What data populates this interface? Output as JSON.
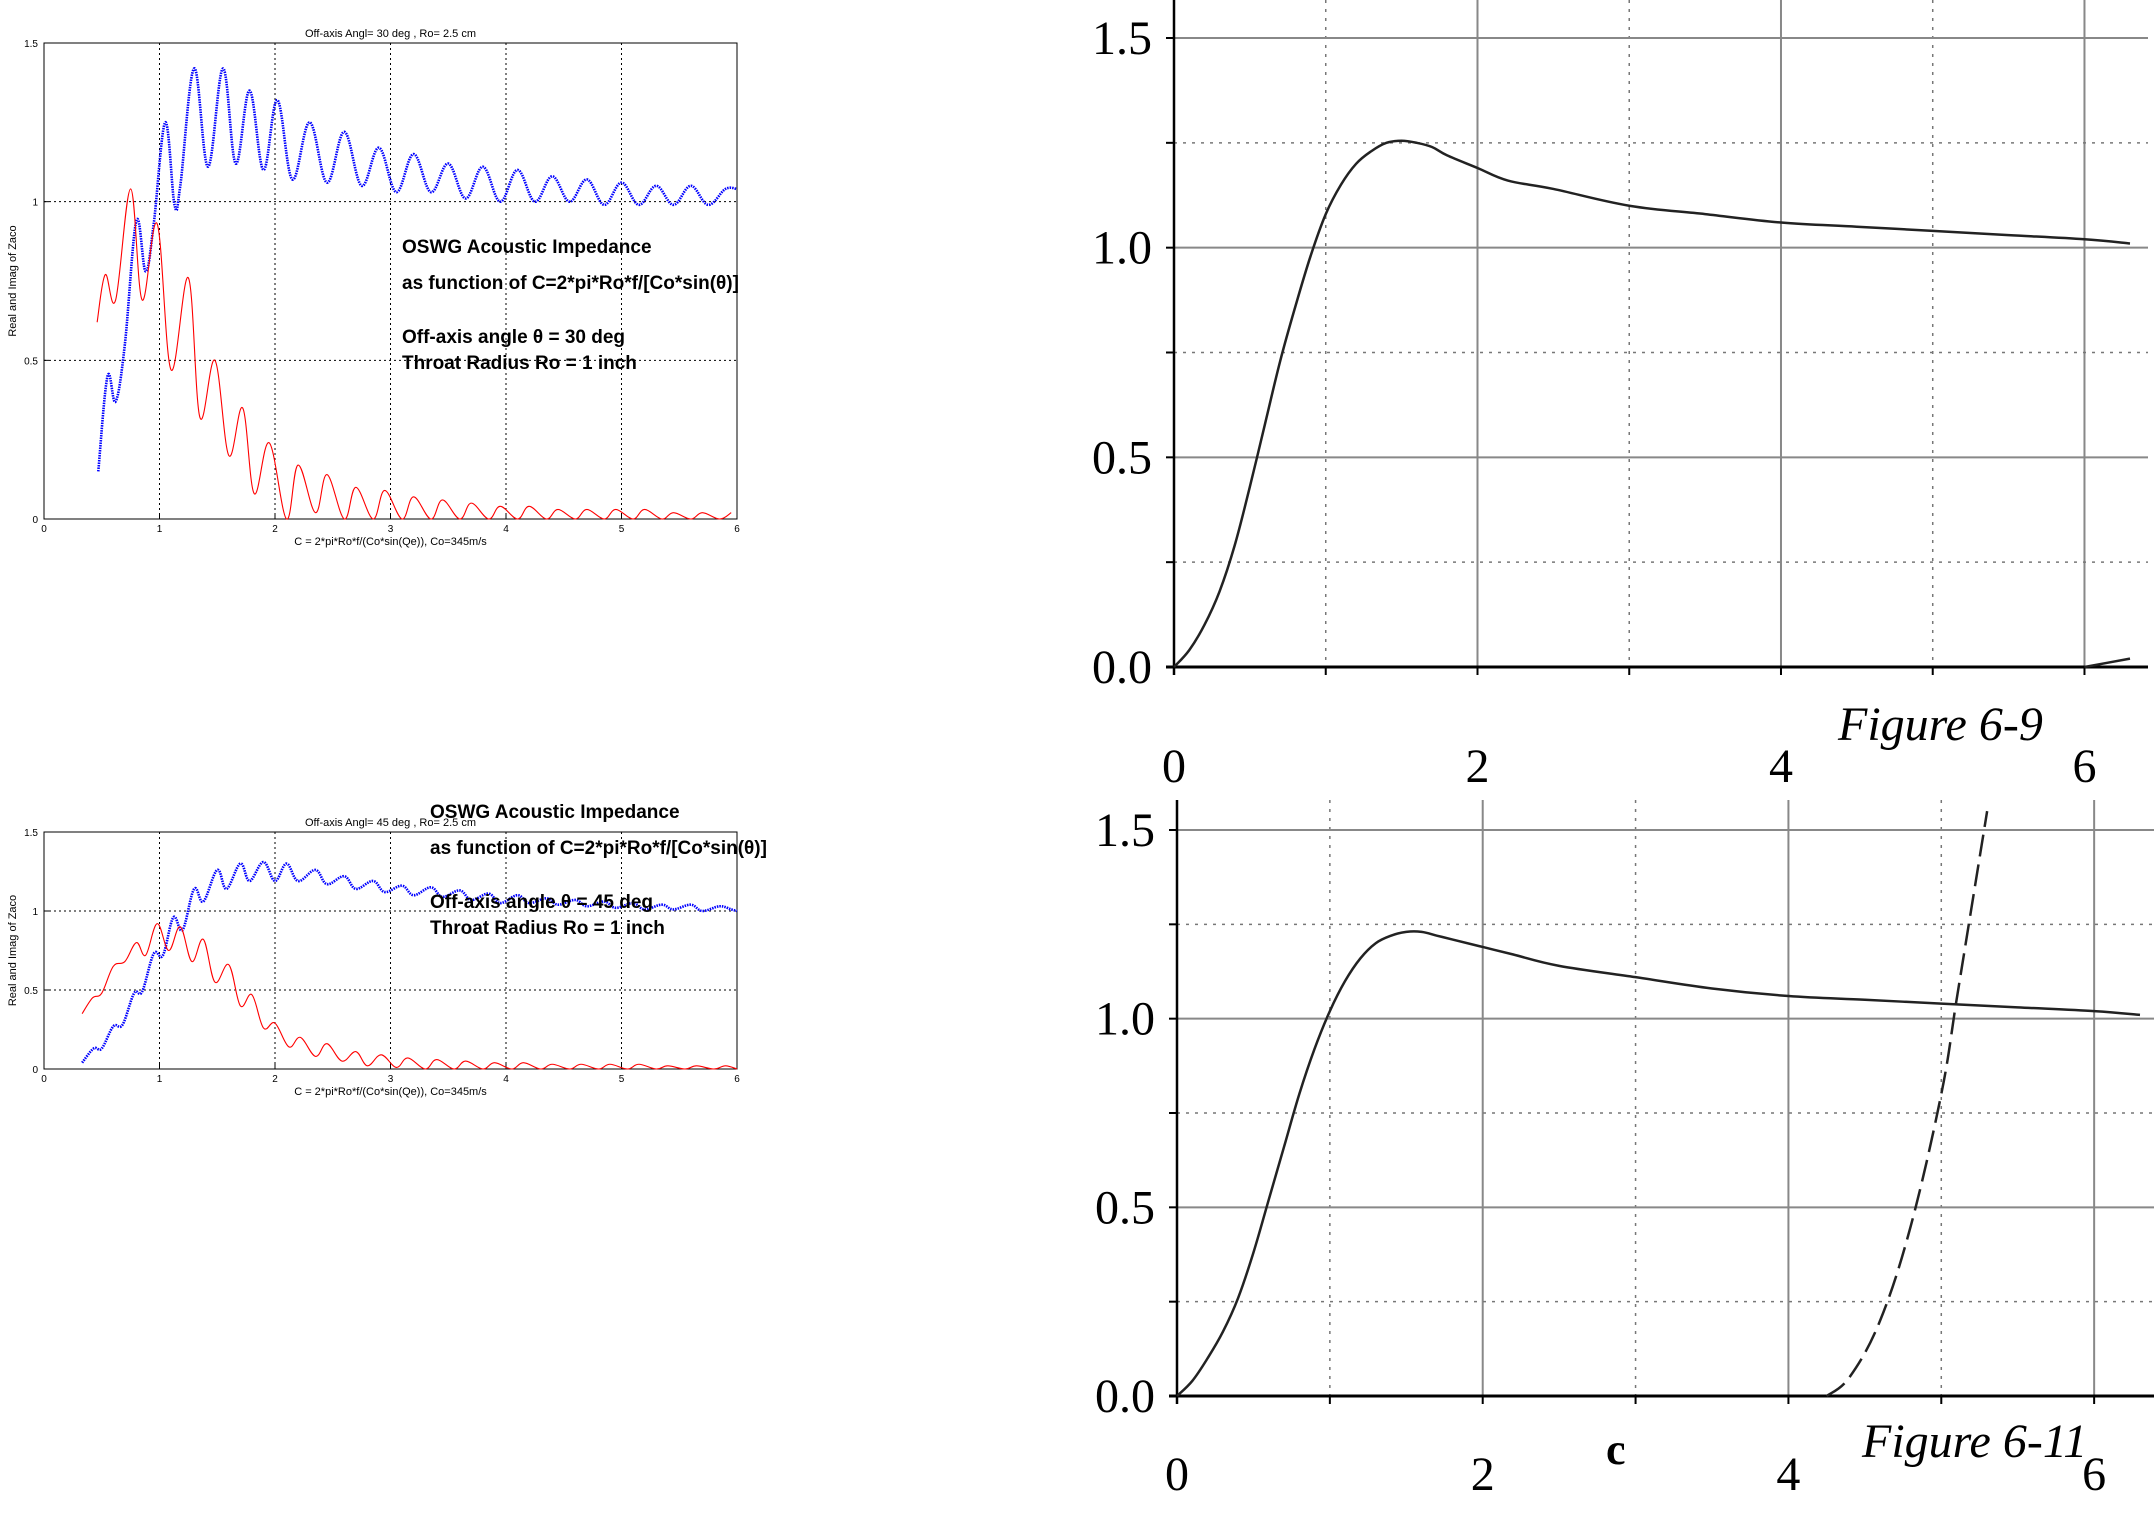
{
  "chart_data": [
    {
      "type": "line",
      "title": "Off-axis Angl= 30 deg  , Ro= 2.5 cm",
      "xlabel": "C = 2*pi*Ro*f/(Co*sin(Qe)), Co=345m/s",
      "ylabel": "Real and Imag of Zaco",
      "xlim": [
        0,
        6
      ],
      "ylim": [
        0,
        1.5
      ],
      "xticks": [
        "0",
        "1",
        "2",
        "3",
        "4",
        "5",
        "6"
      ],
      "yticks": [
        "0",
        "0.5",
        "1",
        "1.5"
      ],
      "grid": "dotted",
      "annotation": {
        "line1": "OSWG Acoustic Impedance",
        "line2": "as function of  C=2*pi*Ro*f/[Co*sin(θ)]",
        "line3": "Off-axis angle  θ    = 30 deg",
        "line4": "Throat Radius Ro = 1 inch"
      },
      "series": [
        {
          "color": "#0000ff",
          "style": "dotted-markers",
          "x": [
            0.47,
            0.55,
            0.62,
            0.7,
            0.8,
            0.88,
            0.95,
            1.05,
            1.13,
            1.18,
            1.3,
            1.42,
            1.55,
            1.66,
            1.78,
            1.9,
            2.02,
            2.15,
            2.3,
            2.45,
            2.6,
            2.75,
            2.9,
            3.05,
            3.2,
            3.35,
            3.5,
            3.65,
            3.8,
            3.95,
            4.1,
            4.25,
            4.4,
            4.55,
            4.7,
            4.85,
            5.0,
            5.15,
            5.3,
            5.45,
            5.6,
            5.75,
            5.9,
            6.0
          ],
          "y": [
            0.15,
            0.45,
            0.37,
            0.55,
            0.94,
            0.78,
            0.93,
            1.25,
            0.99,
            1.05,
            1.42,
            1.11,
            1.42,
            1.12,
            1.35,
            1.1,
            1.32,
            1.07,
            1.25,
            1.06,
            1.22,
            1.05,
            1.17,
            1.03,
            1.15,
            1.03,
            1.12,
            1.01,
            1.11,
            1.0,
            1.1,
            1.0,
            1.08,
            1.0,
            1.07,
            0.99,
            1.06,
            0.99,
            1.05,
            0.99,
            1.05,
            0.99,
            1.04,
            1.04
          ]
        },
        {
          "color": "#ff0000",
          "style": "solid",
          "x": [
            0.46,
            0.53,
            0.62,
            0.75,
            0.85,
            0.98,
            1.1,
            1.25,
            1.35,
            1.48,
            1.6,
            1.72,
            1.82,
            1.95,
            2.1,
            2.2,
            2.35,
            2.45,
            2.6,
            2.7,
            2.85,
            2.95,
            3.1,
            3.2,
            3.35,
            3.45,
            3.6,
            3.7,
            3.85,
            3.95,
            4.1,
            4.2,
            4.35,
            4.45,
            4.6,
            4.7,
            4.85,
            4.95,
            5.1,
            5.2,
            5.35,
            5.45,
            5.6,
            5.7,
            5.85,
            5.95
          ],
          "y": [
            0.62,
            0.77,
            0.69,
            1.04,
            0.69,
            0.93,
            0.47,
            0.76,
            0.32,
            0.5,
            0.2,
            0.35,
            0.08,
            0.24,
            0.0,
            0.17,
            0.02,
            0.14,
            0.0,
            0.1,
            0.0,
            0.09,
            0.0,
            0.07,
            0.0,
            0.06,
            0.0,
            0.05,
            0.0,
            0.04,
            0.0,
            0.04,
            0.0,
            0.03,
            0.0,
            0.03,
            0.0,
            0.03,
            0.0,
            0.03,
            0.0,
            0.02,
            0.0,
            0.02,
            0.0,
            0.02
          ]
        }
      ]
    },
    {
      "type": "line",
      "title": "Off-axis Angl= 45 deg  , Ro= 2.5 cm",
      "xlabel": "C = 2*pi*Ro*f/(Co*sin(Qe)), Co=345m/s",
      "ylabel": "Real and Imag of Zaco",
      "xlim": [
        0,
        6
      ],
      "ylim": [
        0,
        1.5
      ],
      "xticks": [
        "0",
        "1",
        "2",
        "3",
        "4",
        "5",
        "6"
      ],
      "yticks": [
        "0",
        "0.5",
        "1",
        "1.5"
      ],
      "grid": "dotted",
      "annotation": {
        "line1": "OSWG Acoustic Impedance",
        "line2": "as function of  C=2*pi*Ro*f/[Co*sin(θ)]",
        "line3": "Off-axis angle  θ    = 45 deg",
        "line4": "Throat Radius Ro = 1 inch"
      },
      "series": [
        {
          "color": "#0000ff",
          "style": "dotted-markers",
          "x": [
            0.33,
            0.43,
            0.5,
            0.6,
            0.68,
            0.78,
            0.85,
            0.95,
            1.03,
            1.12,
            1.2,
            1.3,
            1.38,
            1.5,
            1.58,
            1.7,
            1.78,
            1.9,
            2.0,
            2.1,
            2.2,
            2.35,
            2.45,
            2.6,
            2.7,
            2.85,
            2.95,
            3.1,
            3.2,
            3.35,
            3.45,
            3.6,
            3.7,
            3.85,
            3.95,
            4.1,
            4.2,
            4.35,
            4.45,
            4.6,
            4.7,
            4.85,
            4.95,
            5.1,
            5.2,
            5.35,
            5.45,
            5.6,
            5.7,
            5.85,
            5.95,
            6.0
          ],
          "y": [
            0.04,
            0.13,
            0.13,
            0.27,
            0.28,
            0.48,
            0.49,
            0.73,
            0.72,
            0.96,
            0.88,
            1.14,
            1.06,
            1.26,
            1.14,
            1.3,
            1.19,
            1.31,
            1.19,
            1.3,
            1.19,
            1.26,
            1.17,
            1.22,
            1.14,
            1.19,
            1.12,
            1.16,
            1.1,
            1.15,
            1.09,
            1.13,
            1.07,
            1.11,
            1.05,
            1.1,
            1.05,
            1.08,
            1.04,
            1.07,
            1.03,
            1.06,
            1.02,
            1.05,
            1.01,
            1.04,
            1.01,
            1.04,
            1.0,
            1.03,
            1.01,
            1.0
          ]
        },
        {
          "color": "#ff0000",
          "style": "solid",
          "x": [
            0.33,
            0.42,
            0.5,
            0.6,
            0.7,
            0.8,
            0.88,
            0.98,
            1.08,
            1.18,
            1.28,
            1.38,
            1.48,
            1.6,
            1.7,
            1.8,
            1.9,
            2.0,
            2.12,
            2.22,
            2.35,
            2.45,
            2.58,
            2.7,
            2.8,
            2.92,
            3.05,
            3.15,
            3.3,
            3.4,
            3.55,
            3.65,
            3.8,
            3.9,
            4.05,
            4.15,
            4.3,
            4.4,
            4.55,
            4.65,
            4.8,
            4.9,
            5.05,
            5.15,
            5.3,
            5.4,
            5.55,
            5.65,
            5.8,
            5.9,
            6.0
          ],
          "y": [
            0.35,
            0.45,
            0.48,
            0.65,
            0.68,
            0.8,
            0.72,
            0.92,
            0.75,
            0.9,
            0.68,
            0.82,
            0.55,
            0.66,
            0.4,
            0.47,
            0.26,
            0.29,
            0.14,
            0.2,
            0.08,
            0.16,
            0.05,
            0.11,
            0.02,
            0.09,
            0.01,
            0.07,
            0.0,
            0.06,
            0.0,
            0.05,
            0.0,
            0.04,
            0.0,
            0.04,
            0.0,
            0.03,
            0.0,
            0.03,
            0.0,
            0.03,
            0.0,
            0.03,
            0.0,
            0.02,
            0.0,
            0.02,
            0.0,
            0.02,
            0.0
          ]
        }
      ]
    },
    {
      "type": "line",
      "title": "",
      "caption": "Figure 6-9",
      "xlim": [
        0,
        6.3
      ],
      "ylim": [
        0,
        1.5
      ],
      "xticks": [
        "0",
        "2",
        "4",
        "6"
      ],
      "yticks": [
        "0.0",
        "0.5",
        "1.0",
        "1.5"
      ],
      "grid": "solid-major, dotted-minor",
      "series": [
        {
          "color": "#222222",
          "style": "solid",
          "x": [
            0,
            0.1,
            0.2,
            0.3,
            0.4,
            0.5,
            0.6,
            0.7,
            0.8,
            0.9,
            1.0,
            1.1,
            1.2,
            1.3,
            1.4,
            1.5,
            1.6,
            1.7,
            1.8,
            2.0,
            2.2,
            2.5,
            3.0,
            3.5,
            4.0,
            4.5,
            5.0,
            5.5,
            6.0,
            6.3
          ],
          "y": [
            0,
            0.04,
            0.1,
            0.18,
            0.29,
            0.43,
            0.58,
            0.73,
            0.86,
            0.98,
            1.08,
            1.15,
            1.2,
            1.23,
            1.25,
            1.255,
            1.25,
            1.24,
            1.22,
            1.19,
            1.16,
            1.14,
            1.1,
            1.08,
            1.06,
            1.05,
            1.04,
            1.03,
            1.02,
            1.01
          ]
        },
        {
          "color": "#222222",
          "style": "solid",
          "x": [
            6.0,
            6.3
          ],
          "y": [
            0.0,
            0.02
          ]
        }
      ]
    },
    {
      "type": "line",
      "title": "",
      "caption": "Figure 6-11",
      "xlabel": "c",
      "xlim": [
        0,
        6.3
      ],
      "ylim": [
        0,
        1.5
      ],
      "xticks": [
        "0",
        "2",
        "4",
        "6"
      ],
      "yticks": [
        "0.0",
        "0.5",
        "1.0",
        "1.5"
      ],
      "grid": "solid-major, dotted-minor",
      "series": [
        {
          "color": "#222222",
          "style": "solid",
          "x": [
            0,
            0.1,
            0.2,
            0.3,
            0.4,
            0.5,
            0.6,
            0.7,
            0.8,
            0.9,
            1.0,
            1.1,
            1.2,
            1.3,
            1.4,
            1.5,
            1.6,
            1.7,
            1.8,
            2.0,
            2.2,
            2.5,
            3.0,
            3.5,
            4.0,
            4.5,
            5.0,
            5.5,
            6.0,
            6.3
          ],
          "y": [
            0,
            0.04,
            0.1,
            0.17,
            0.26,
            0.38,
            0.52,
            0.66,
            0.8,
            0.92,
            1.02,
            1.1,
            1.16,
            1.2,
            1.22,
            1.23,
            1.23,
            1.22,
            1.21,
            1.19,
            1.17,
            1.14,
            1.11,
            1.08,
            1.06,
            1.05,
            1.04,
            1.03,
            1.02,
            1.01
          ]
        },
        {
          "color": "#222222",
          "style": "dashed",
          "x": [
            4.25,
            4.4,
            4.6,
            4.8,
            5.0,
            5.1,
            5.2,
            5.3
          ],
          "y": [
            0.0,
            0.05,
            0.2,
            0.45,
            0.8,
            1.05,
            1.3,
            1.55
          ]
        }
      ]
    }
  ]
}
